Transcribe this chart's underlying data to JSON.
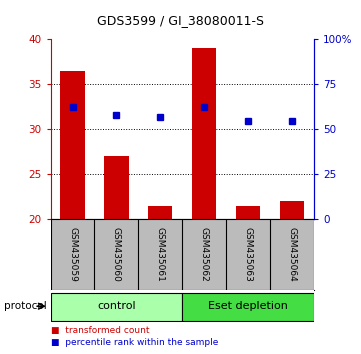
{
  "title": "GDS3599 / GI_38080011-S",
  "samples": [
    "GSM435059",
    "GSM435060",
    "GSM435061",
    "GSM435062",
    "GSM435063",
    "GSM435064"
  ],
  "bar_values": [
    36.5,
    27.0,
    21.5,
    39.0,
    21.5,
    22.0
  ],
  "dot_values": [
    62.5,
    58.0,
    56.5,
    62.5,
    54.5,
    54.5
  ],
  "bar_bottom": 20,
  "left_ylim": [
    20,
    40
  ],
  "right_ylim": [
    0,
    100
  ],
  "left_yticks": [
    20,
    25,
    30,
    35,
    40
  ],
  "right_yticks": [
    0,
    25,
    50,
    75,
    100
  ],
  "right_yticklabels": [
    "0",
    "25",
    "50",
    "75",
    "100%"
  ],
  "grid_lines": [
    25,
    30,
    35
  ],
  "bar_color": "#cc0000",
  "dot_color": "#0000cc",
  "protocol_groups": [
    {
      "label": "control",
      "start": 0,
      "end": 3,
      "color": "#aaffaa"
    },
    {
      "label": "Eset depletion",
      "start": 3,
      "end": 6,
      "color": "#44dd44"
    }
  ],
  "protocol_label": "protocol",
  "legend_items": [
    {
      "color": "#cc0000",
      "label": "transformed count"
    },
    {
      "color": "#0000cc",
      "label": "percentile rank within the sample"
    }
  ],
  "left_axis_color": "#cc0000",
  "right_axis_color": "#0000cc",
  "tick_label_area_color": "#bbbbbb",
  "background_color": "#ffffff"
}
